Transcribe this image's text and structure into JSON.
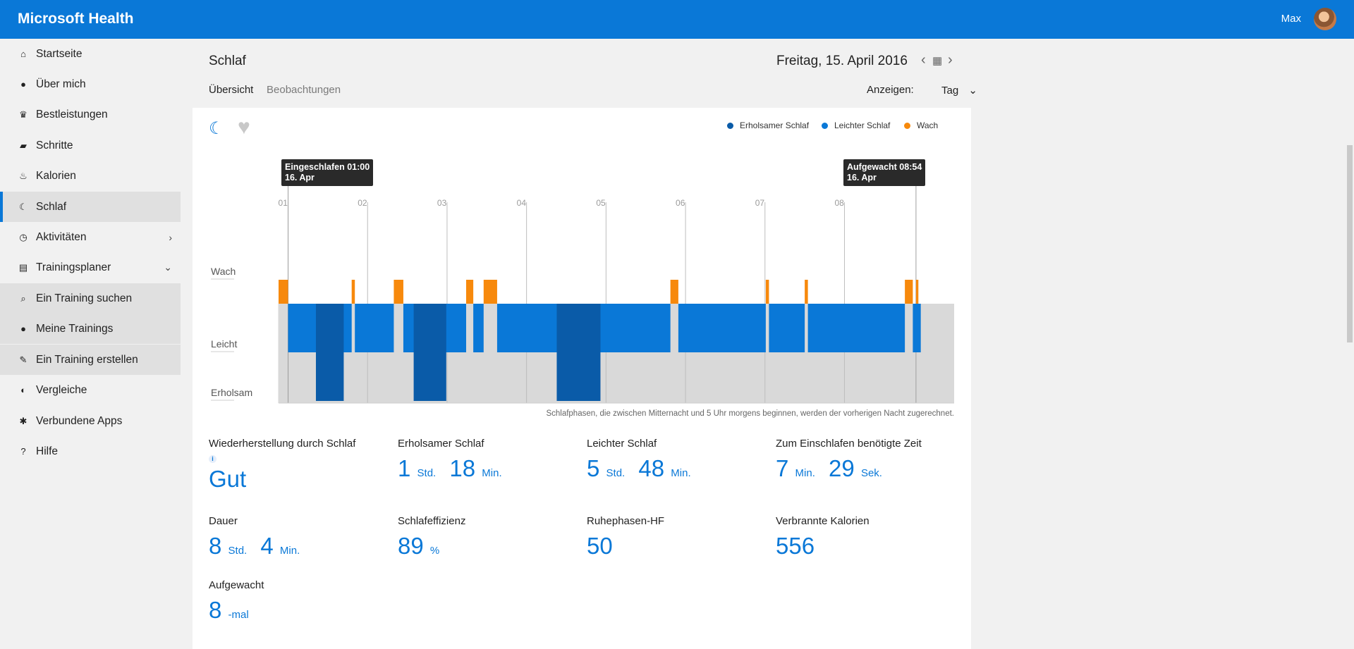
{
  "app": {
    "title": "Microsoft Health",
    "user": "Max"
  },
  "sidebar": {
    "items": [
      {
        "label": "Startseite",
        "icon": "home-icon"
      },
      {
        "label": "Über mich",
        "icon": "person-icon"
      },
      {
        "label": "Bestleistungen",
        "icon": "trophy-icon"
      },
      {
        "label": "Schritte",
        "icon": "shoe-icon"
      },
      {
        "label": "Kalorien",
        "icon": "flame-icon"
      },
      {
        "label": "Schlaf",
        "icon": "moon-icon"
      },
      {
        "label": "Aktivitäten",
        "icon": "stopwatch-icon"
      },
      {
        "label": "Trainingsplaner",
        "icon": "clipboard-icon"
      },
      {
        "label": "Ein Training suchen",
        "icon": "search-icon"
      },
      {
        "label": "Meine Trainings",
        "icon": "person-icon"
      },
      {
        "label": "Ein Training erstellen",
        "icon": "wrench-icon"
      },
      {
        "label": "Vergleiche",
        "icon": "compare-icon"
      },
      {
        "label": "Verbundene Apps",
        "icon": "apps-icon"
      },
      {
        "label": "Hilfe",
        "icon": "help-icon"
      }
    ]
  },
  "header": {
    "title": "Schlaf",
    "date": "Freitag, 15. April 2016",
    "tabs": [
      "Übersicht",
      "Beobachtungen"
    ],
    "view_label": "Anzeigen:",
    "view_value": "Tag"
  },
  "legend": [
    {
      "label": "Erholsamer Schlaf",
      "color": "#0a5ba8"
    },
    {
      "label": "Leichter Schlaf",
      "color": "#0a78d7"
    },
    {
      "label": "Wach",
      "color": "#f7890c"
    }
  ],
  "tooltips": {
    "start": {
      "line1": "Eingeschlafen 01:00",
      "line2": "16. Apr"
    },
    "end": {
      "line1": "Aufgewacht 08:54",
      "line2": "16. Apr"
    }
  },
  "chart_data": {
    "type": "timeline",
    "x_unit": "hours",
    "x_ticks": [
      "01",
      "02",
      "03",
      "04",
      "05",
      "06",
      "07",
      "08"
    ],
    "x_range": [
      0.88,
      9.38
    ],
    "rows": [
      "Wach",
      "Leicht",
      "Erholsam"
    ],
    "sleep_start": 1.0,
    "sleep_end": 8.9,
    "awake": [
      [
        0.88,
        1.0
      ],
      [
        1.8,
        1.84
      ],
      [
        2.33,
        2.45
      ],
      [
        3.24,
        3.33
      ],
      [
        3.46,
        3.63
      ],
      [
        5.81,
        5.91
      ],
      [
        7.01,
        7.05
      ],
      [
        7.5,
        7.54
      ],
      [
        8.76,
        8.86
      ],
      [
        8.9,
        8.93
      ]
    ],
    "light": [
      [
        1.0,
        1.8
      ],
      [
        1.84,
        2.33
      ],
      [
        2.45,
        3.24
      ],
      [
        3.33,
        3.46
      ],
      [
        3.63,
        5.81
      ],
      [
        5.91,
        7.01
      ],
      [
        7.05,
        7.5
      ],
      [
        7.54,
        8.76
      ],
      [
        8.86,
        8.96
      ]
    ],
    "restful": [
      [
        1.35,
        1.7
      ],
      [
        2.58,
        2.99
      ],
      [
        4.38,
        4.93
      ]
    ],
    "colors": {
      "awake": "#f7890c",
      "light": "#0a78d7",
      "restful": "#0a5ba8",
      "band": "#d9d9d9"
    }
  },
  "note": "Schlafphasen, die zwischen Mitternacht und 5 Uhr morgens beginnen, werden der vorherigen Nacht zugerechnet.",
  "stats": {
    "recovery": {
      "label": "Wiederherstellung durch Schlaf",
      "value": "Gut"
    },
    "restful": {
      "label": "Erholsamer Schlaf",
      "h": "1",
      "h_unit": "Std.",
      "m": "18",
      "m_unit": "Min."
    },
    "light": {
      "label": "Leichter Schlaf",
      "h": "5",
      "h_unit": "Std.",
      "m": "48",
      "m_unit": "Min."
    },
    "fall_asleep": {
      "label": "Zum Einschlafen benötigte Zeit",
      "m": "7",
      "m_unit": "Min.",
      "s": "29",
      "s_unit": "Sek."
    },
    "duration": {
      "label": "Dauer",
      "h": "8",
      "h_unit": "Std.",
      "m": "4",
      "m_unit": "Min."
    },
    "efficiency": {
      "label": "Schlafeffizienz",
      "value": "89",
      "unit": "%"
    },
    "resting_hr": {
      "label": "Ruhephasen-HF",
      "value": "50"
    },
    "calories": {
      "label": "Verbrannte Kalorien",
      "value": "556"
    },
    "woke_up": {
      "label": "Aufgewacht",
      "value": "8",
      "unit": "-mal"
    }
  }
}
